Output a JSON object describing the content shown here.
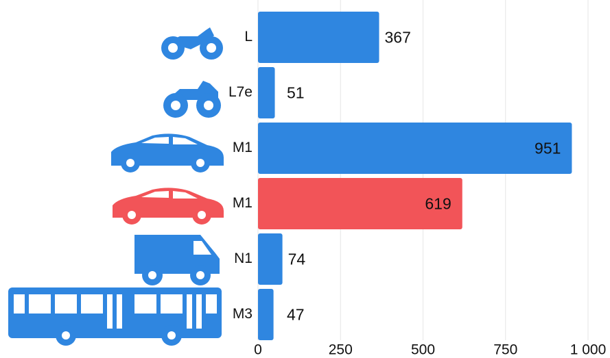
{
  "chart_data": {
    "type": "bar",
    "orientation": "horizontal",
    "categories": [
      "L",
      "L7e",
      "M1",
      "M1",
      "N1",
      "M3"
    ],
    "values": [
      367,
      51,
      951,
      619,
      74,
      47
    ],
    "colors": [
      "#2f86e0",
      "#2f86e0",
      "#2f86e0",
      "#f25458",
      "#2f86e0",
      "#2f86e0"
    ],
    "xlim": [
      0,
      1000
    ],
    "xticks": [
      0,
      250,
      500,
      750,
      {
        "value": 1000,
        "label": "1 000"
      }
    ],
    "grid": true
  }
}
